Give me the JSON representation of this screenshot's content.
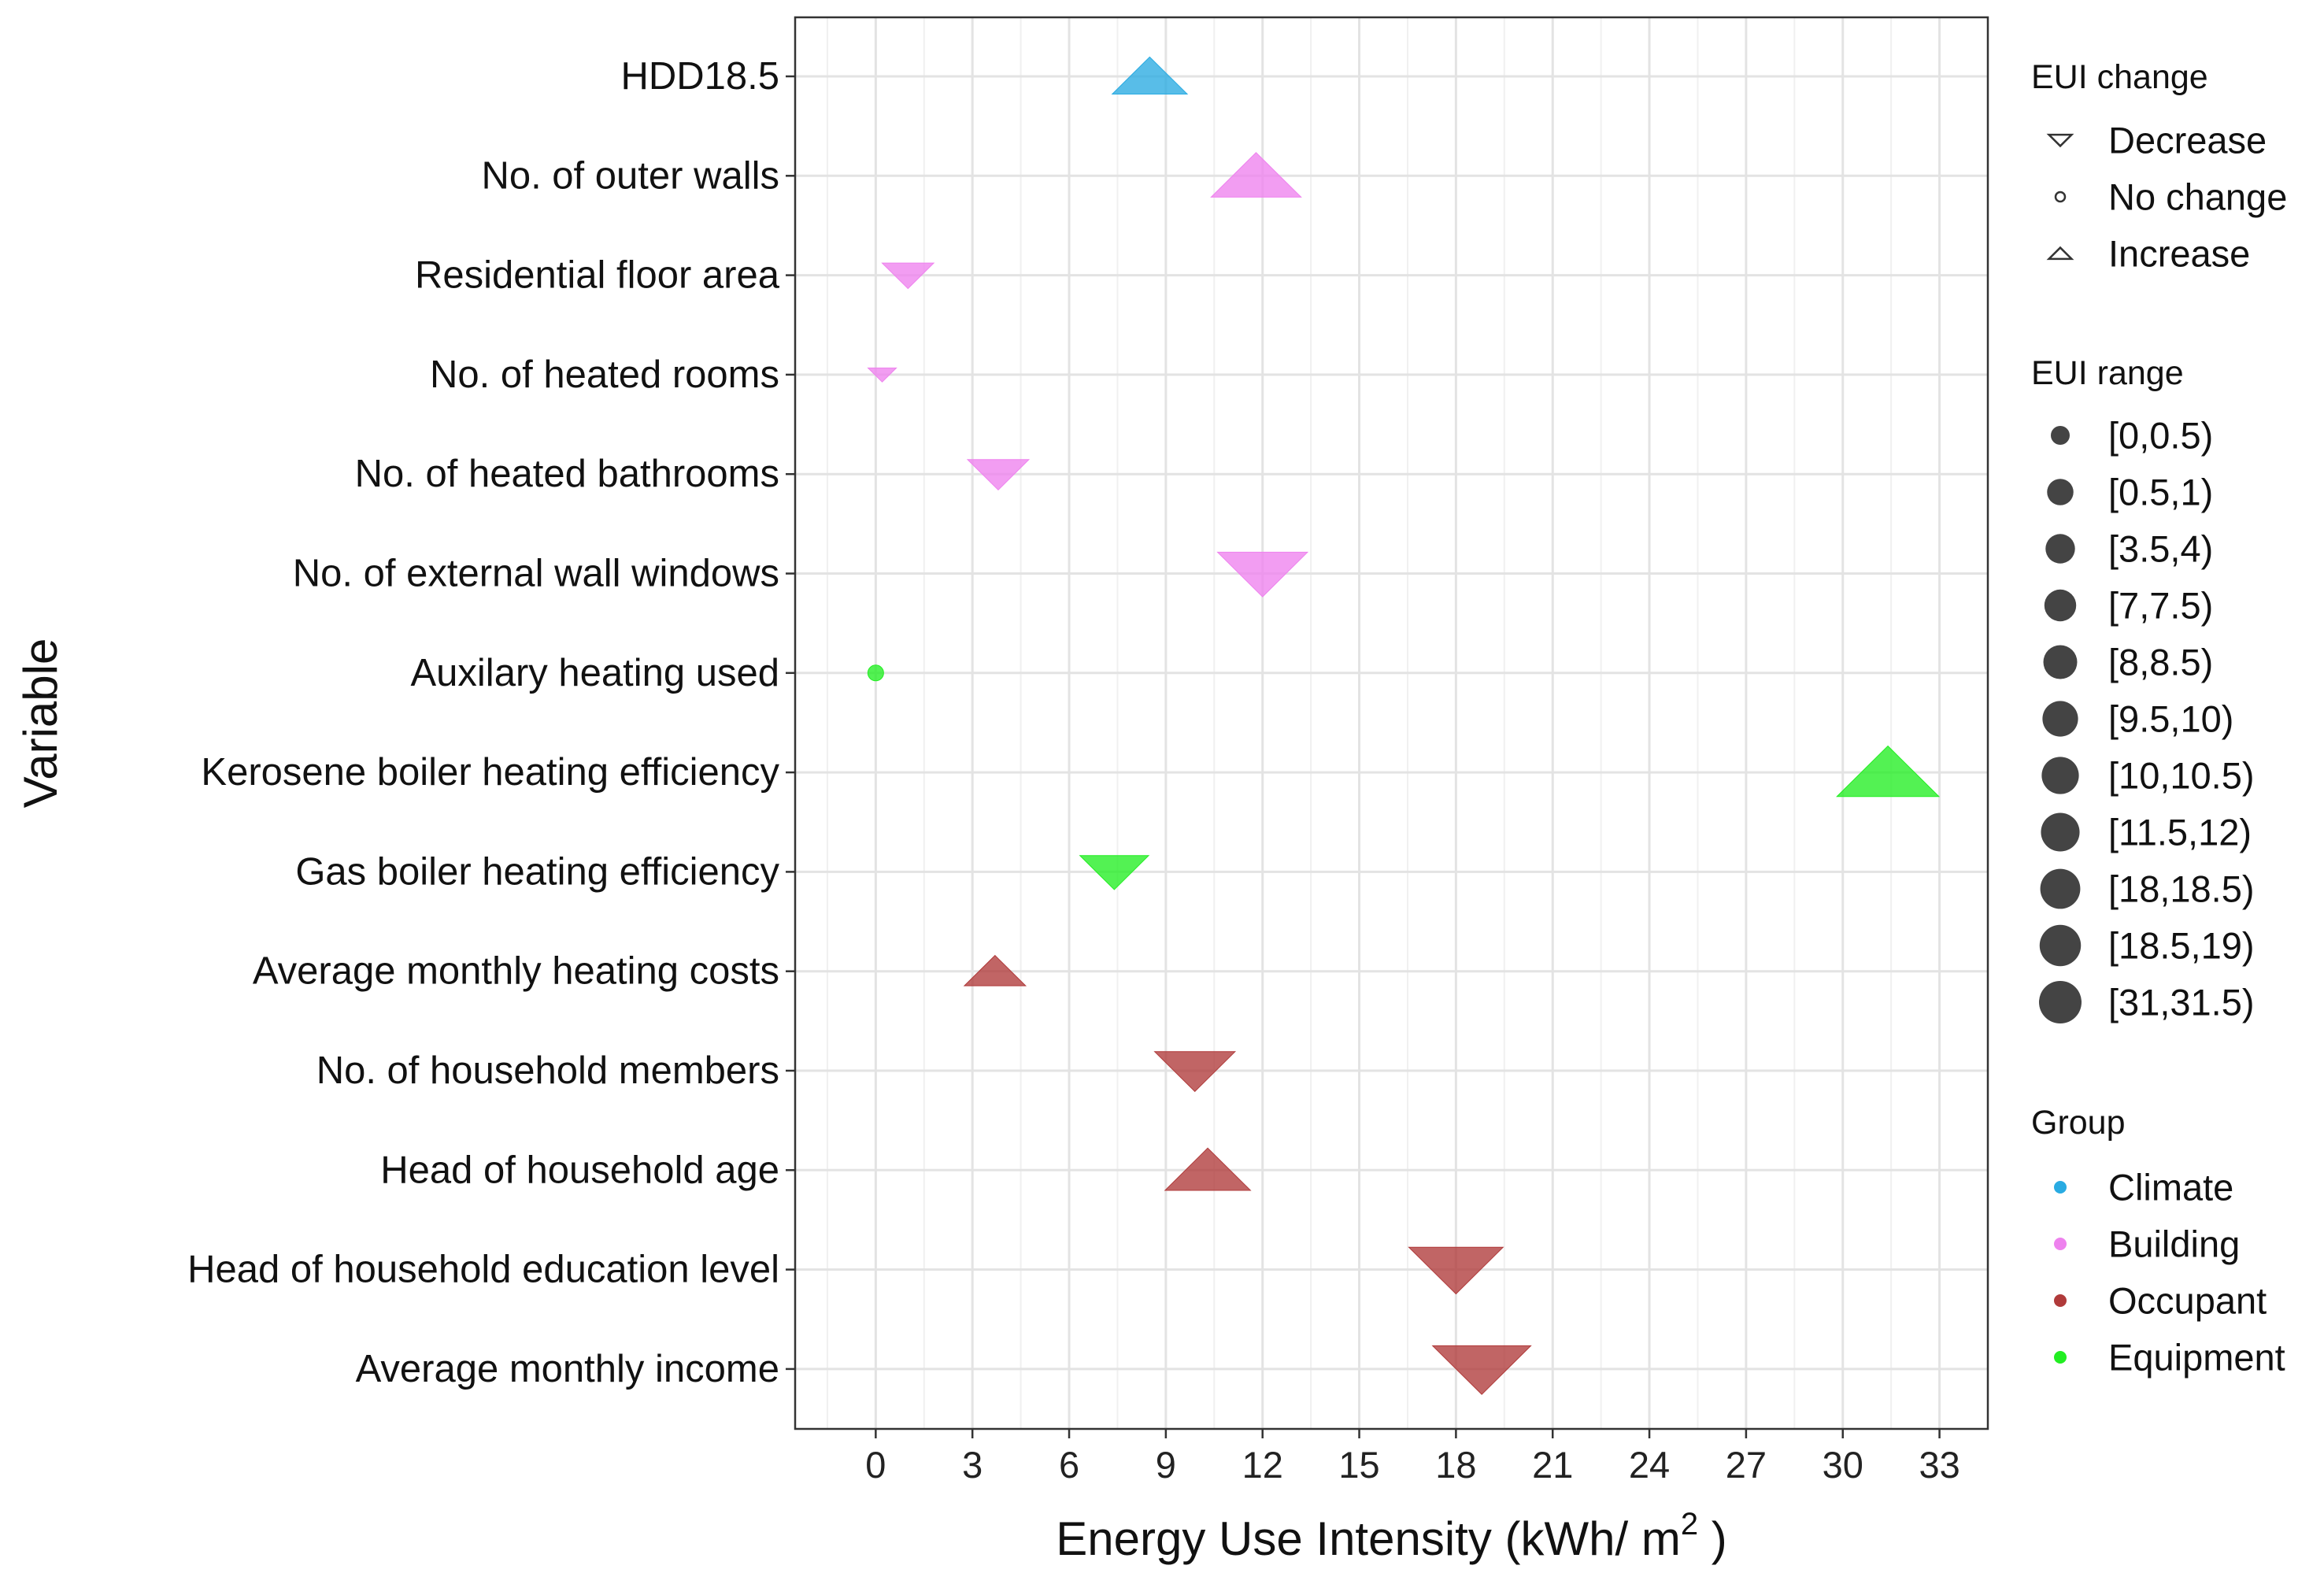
{
  "chart_data": {
    "type": "scatter",
    "xlabel": "Energy Use Intensity (kWh/ m",
    "xlabel_superscript": "2",
    "xlabel_suffix": " )",
    "ylabel": "Variable",
    "xlim": [
      -2.5,
      34.5
    ],
    "x_ticks": [
      0,
      3,
      6,
      9,
      12,
      15,
      18,
      21,
      24,
      27,
      30,
      33
    ],
    "grid": true,
    "legend_position": "right",
    "categories": [
      "HDD18.5",
      "No. of outer walls",
      "Residential floor area",
      "No. of heated rooms",
      "No. of heated bathrooms",
      "No. of external wall windows",
      "Auxilary heating used",
      "Kerosene boiler heating efficiency",
      "Gas boiler heating efficiency",
      "Average monthly heating costs",
      "No. of household members",
      "Head of household age",
      "Head of household education level",
      "Average monthly income"
    ],
    "points": [
      {
        "variable": "HDD18.5",
        "x": 8.5,
        "change": "Increase",
        "range": "[8,8.5)",
        "group": "Climate"
      },
      {
        "variable": "No. of outer walls",
        "x": 11.8,
        "change": "Increase",
        "range": "[11.5,12)",
        "group": "Building"
      },
      {
        "variable": "Residential floor area",
        "x": 1.0,
        "change": "Decrease",
        "range": "[0.5,1)",
        "group": "Building"
      },
      {
        "variable": "No. of heated rooms",
        "x": 0.2,
        "change": "Decrease",
        "range": "[0,0.5)",
        "group": "Building"
      },
      {
        "variable": "No. of heated bathrooms",
        "x": 3.8,
        "change": "Decrease",
        "range": "[3.5,4)",
        "group": "Building"
      },
      {
        "variable": "No. of external wall windows",
        "x": 12.0,
        "change": "Decrease",
        "range": "[11.5,12)",
        "group": "Building"
      },
      {
        "variable": "Auxilary heating used",
        "x": 0.0,
        "change": "No change",
        "range": "[0,0.5)",
        "group": "Equipment"
      },
      {
        "variable": "Kerosene boiler heating efficiency",
        "x": 31.4,
        "change": "Increase",
        "range": "[31,31.5)",
        "group": "Equipment"
      },
      {
        "variable": "Gas boiler heating efficiency",
        "x": 7.4,
        "change": "Decrease",
        "range": "[7,7.5)",
        "group": "Equipment"
      },
      {
        "variable": "Average monthly heating costs",
        "x": 3.7,
        "change": "Increase",
        "range": "[3.5,4)",
        "group": "Occupant"
      },
      {
        "variable": "No. of household members",
        "x": 9.9,
        "change": "Decrease",
        "range": "[9.5,10)",
        "group": "Occupant"
      },
      {
        "variable": "Head of household age",
        "x": 10.3,
        "change": "Increase",
        "range": "[10,10.5)",
        "group": "Occupant"
      },
      {
        "variable": "Head of household education level",
        "x": 18.0,
        "change": "Decrease",
        "range": "[18,18.5)",
        "group": "Occupant"
      },
      {
        "variable": "Average monthly income",
        "x": 18.8,
        "change": "Decrease",
        "range": "[18.5,19)",
        "group": "Occupant"
      }
    ],
    "size_levels": [
      "[0,0.5)",
      "[0.5,1)",
      "[3.5,4)",
      "[7,7.5)",
      "[8,8.5)",
      "[9.5,10)",
      "[10,10.5)",
      "[11.5,12)",
      "[18,18.5)",
      "[18.5,19)",
      "[31,31.5)"
    ],
    "legends": {
      "change": {
        "title": "EUI change",
        "items": [
          "Decrease",
          "No change",
          "Increase"
        ]
      },
      "range": {
        "title": "EUI range",
        "items": [
          "[0,0.5)",
          "[0.5,1)",
          "[3.5,4)",
          "[7,7.5)",
          "[8,8.5)",
          "[9.5,10)",
          "[10,10.5)",
          "[11.5,12)",
          "[18,18.5)",
          "[18.5,19)",
          "[31,31.5)"
        ]
      },
      "group": {
        "title": "Group",
        "items": [
          "Climate",
          "Building",
          "Occupant",
          "Equipment"
        ]
      }
    },
    "group_colors": {
      "Climate": "#29abe2",
      "Building": "#ee82ee",
      "Occupant": "#b03a3a",
      "Equipment": "#22ee22"
    },
    "legend_marker_color": "#444444"
  }
}
